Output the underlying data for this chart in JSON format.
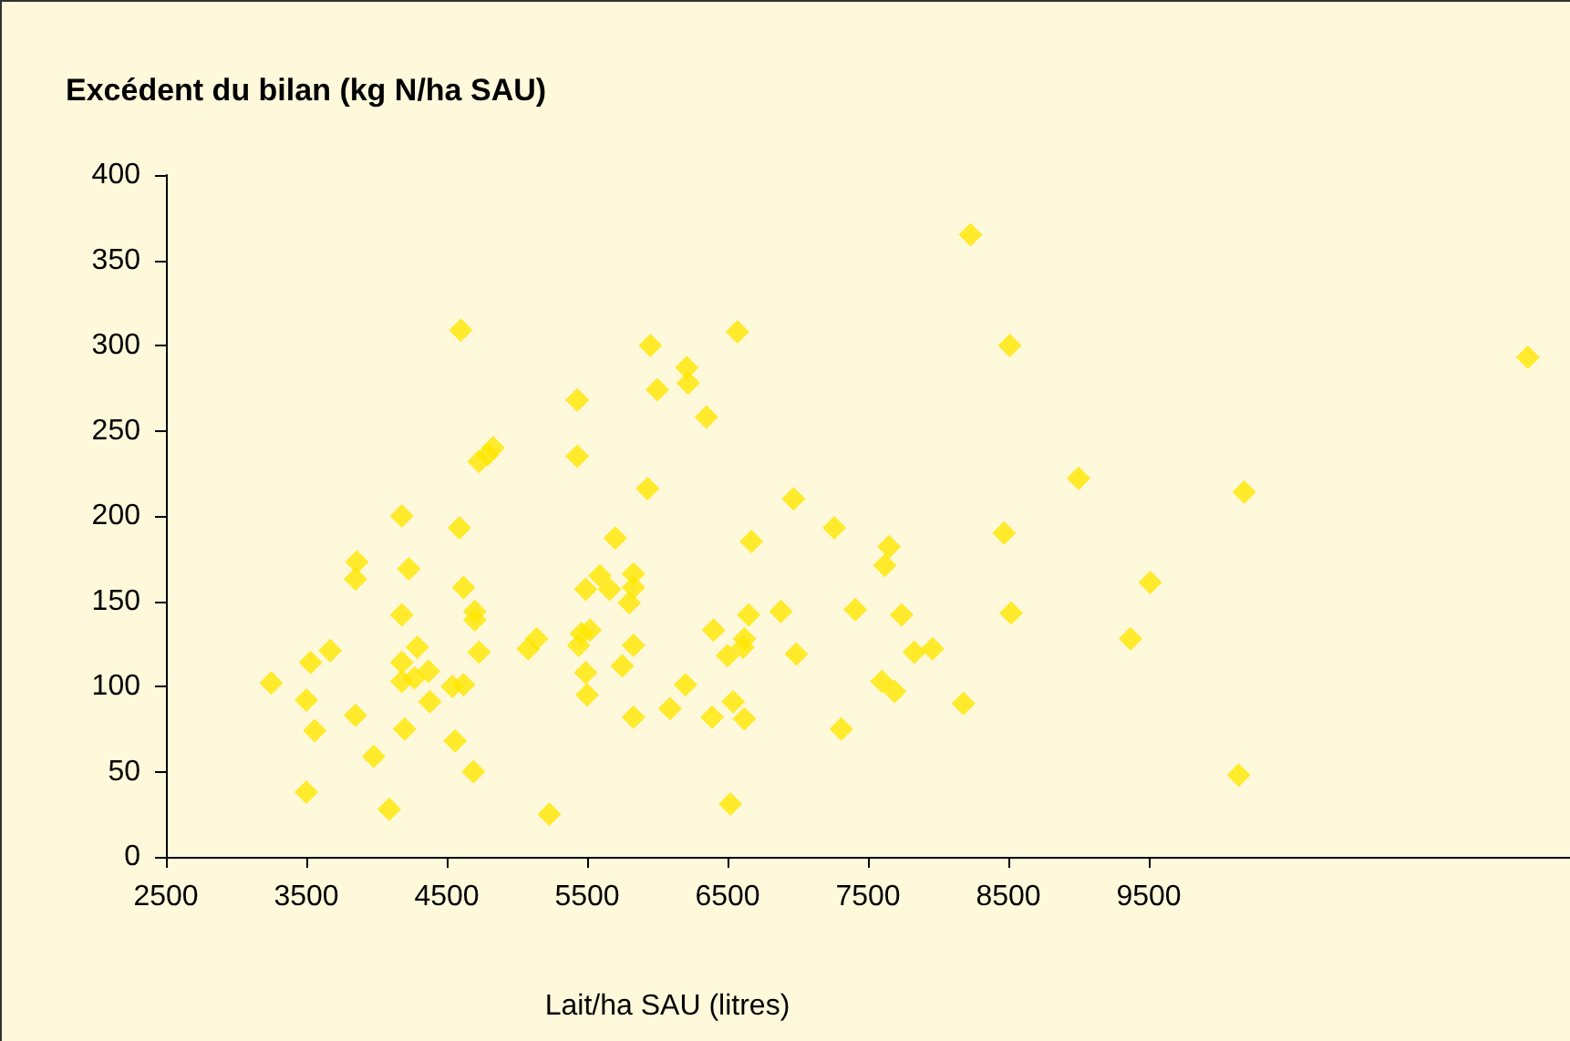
{
  "chart_data": {
    "type": "scatter",
    "title": "Excédent du bilan (kg N/ha SAU)",
    "xlabel": "Lait/ha SAU (litres)",
    "x": [
      3250,
      3530,
      3500,
      3560,
      3670,
      3500,
      3860,
      3850,
      3850,
      3980,
      4090,
      4180,
      4230,
      4180,
      4290,
      4180,
      4180,
      4270,
      4370,
      4380,
      4200,
      4590,
      4600,
      4620,
      4700,
      4700,
      4730,
      4540,
      4620,
      4560,
      4690,
      4730,
      4790,
      4830,
      5140,
      5080,
      5230,
      5430,
      5430,
      5930,
      5700,
      5950,
      5490,
      5590,
      5660,
      5830,
      5830,
      5800,
      5460,
      5520,
      5440,
      5490,
      5500,
      5830,
      5750,
      5830,
      6000,
      6210,
      6220,
      6350,
      6570,
      6970,
      8230,
      8510,
      9000,
      8470,
      9510,
      9370,
      8520,
      8180,
      6670,
      7260,
      7650,
      7620,
      6650,
      6880,
      7410,
      7740,
      6400,
      6620,
      6610,
      6500,
      6990,
      7830,
      7960,
      7600,
      7690,
      6200,
      6090,
      6390,
      6540,
      6620,
      7310,
      6520,
      12200,
      10180,
      10140
    ],
    "series": [
      {
        "color": "#ffe600",
        "values": [
          102,
          114,
          92,
          74,
          121,
          38,
          173,
          163,
          83,
          59,
          28,
          200,
          169,
          142,
          123,
          114,
          103,
          105,
          109,
          91,
          75,
          193,
          309,
          158,
          144,
          139,
          120,
          100,
          101,
          68,
          50,
          232,
          236,
          240,
          128,
          122,
          25,
          268,
          235,
          216,
          187,
          300,
          157,
          165,
          157,
          166,
          158,
          149,
          131,
          133,
          124,
          108,
          95,
          124,
          112,
          82,
          274,
          287,
          278,
          258,
          308,
          210,
          365,
          300,
          222,
          190,
          161,
          128,
          143,
          90,
          185,
          193,
          182,
          171,
          142,
          144,
          145,
          142,
          133,
          128,
          123,
          118,
          119,
          120,
          122,
          103,
          97,
          101,
          87,
          82,
          91,
          81,
          75,
          31,
          293,
          214,
          48
        ]
      }
    ],
    "xlim": [
      2500,
      12500
    ],
    "xticks": [
      2500,
      3500,
      4500,
      5500,
      6500,
      7500,
      8500,
      9500
    ],
    "ylim": [
      0,
      400
    ],
    "yticks": [
      0,
      50,
      100,
      150,
      200,
      250,
      300,
      350,
      400
    ],
    "marker": "diamond",
    "grid": false
  }
}
